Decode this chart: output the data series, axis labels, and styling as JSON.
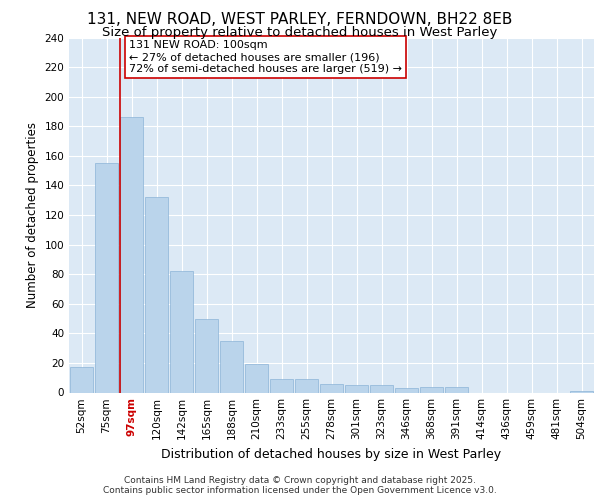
{
  "title_line1": "131, NEW ROAD, WEST PARLEY, FERNDOWN, BH22 8EB",
  "title_line2": "Size of property relative to detached houses in West Parley",
  "xlabel": "Distribution of detached houses by size in West Parley",
  "ylabel": "Number of detached properties",
  "categories": [
    "52sqm",
    "75sqm",
    "97sqm",
    "120sqm",
    "142sqm",
    "165sqm",
    "188sqm",
    "210sqm",
    "233sqm",
    "255sqm",
    "278sqm",
    "301sqm",
    "323sqm",
    "346sqm",
    "368sqm",
    "391sqm",
    "414sqm",
    "436sqm",
    "459sqm",
    "481sqm",
    "504sqm"
  ],
  "values": [
    17,
    155,
    186,
    132,
    82,
    50,
    35,
    19,
    9,
    9,
    6,
    5,
    5,
    3,
    4,
    4,
    0,
    0,
    0,
    0,
    1
  ],
  "bar_color": "#bad4eb",
  "bar_edge_color": "#8cb4d8",
  "vline_index": 2,
  "vline_color": "#cc0000",
  "annotation_text": "131 NEW ROAD: 100sqm\n← 27% of detached houses are smaller (196)\n72% of semi-detached houses are larger (519) →",
  "annotation_box_facecolor": "#ffffff",
  "annotation_box_edgecolor": "#cc0000",
  "ylim": [
    0,
    240
  ],
  "yticks": [
    0,
    20,
    40,
    60,
    80,
    100,
    120,
    140,
    160,
    180,
    200,
    220,
    240
  ],
  "fig_bg_color": "#ffffff",
  "plot_bg_color": "#dce9f5",
  "grid_color": "#ffffff",
  "footer_line1": "Contains HM Land Registry data © Crown copyright and database right 2025.",
  "footer_line2": "Contains public sector information licensed under the Open Government Licence v3.0.",
  "title_fontsize": 11,
  "subtitle_fontsize": 9.5,
  "axis_label_fontsize": 9,
  "ylabel_fontsize": 8.5,
  "tick_fontsize": 7.5,
  "annotation_fontsize": 8,
  "footer_fontsize": 6.5,
  "highlight_tick_index": 2
}
